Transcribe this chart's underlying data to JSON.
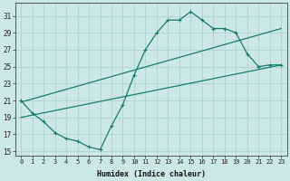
{
  "xlabel": "Humidex (Indice chaleur)",
  "ylabel": "",
  "bg_color": "#cce8e4",
  "line_color": "#1a7a6e",
  "grid_color": "#aed4cf",
  "ylim": [
    14.5,
    32.5
  ],
  "xlim": [
    -0.5,
    23.5
  ],
  "yticks": [
    15,
    17,
    19,
    21,
    23,
    25,
    27,
    29,
    31
  ],
  "xticks": [
    0,
    1,
    2,
    3,
    4,
    5,
    6,
    7,
    8,
    9,
    10,
    11,
    12,
    13,
    14,
    15,
    16,
    17,
    18,
    19,
    20,
    21,
    22,
    23
  ],
  "curve1_x": [
    0,
    1,
    2,
    3,
    4,
    5,
    6,
    7,
    8,
    9,
    10,
    11,
    12,
    13,
    14,
    15,
    16,
    17,
    18,
    19,
    20,
    21,
    22,
    23
  ],
  "curve1_y": [
    21.0,
    19.5,
    18.5,
    17.2,
    16.5,
    16.2,
    15.5,
    15.2,
    18.0,
    20.5,
    24.0,
    27.0,
    29.0,
    30.5,
    30.5,
    31.5,
    30.5,
    29.5,
    29.5,
    29.0,
    26.5,
    25.0,
    25.2,
    25.2
  ],
  "line2_x": [
    0,
    23
  ],
  "line2_y": [
    19.0,
    25.2
  ],
  "line3_x": [
    0,
    23
  ],
  "line3_y": [
    20.8,
    29.5
  ]
}
